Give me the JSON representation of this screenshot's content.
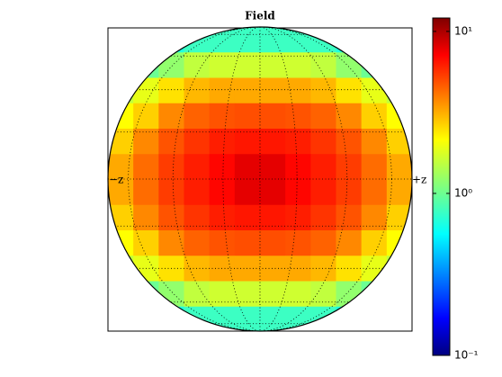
{
  "chart_data": {
    "type": "heatmap",
    "title": "Field",
    "annotations": [
      "−z",
      "+z"
    ],
    "grid": true,
    "colormap": "jet",
    "colorbar": {
      "scale": "log",
      "ylim": [
        0.1,
        12.1
      ],
      "yticks": [
        {
          "value": 0.1,
          "label": "10⁻¹"
        },
        {
          "value": 1,
          "label": "10⁰"
        },
        {
          "value": 10,
          "label": "10¹"
        }
      ]
    },
    "z": [
      [
        0.6,
        0.6,
        0.7,
        0.8,
        0.8,
        0.8,
        0.8,
        0.8,
        0.8,
        0.7,
        0.6,
        0.6
      ],
      [
        1,
        1,
        1.2,
        1.5,
        1.6,
        1.6,
        1.6,
        1.6,
        1.5,
        1.2,
        1,
        1
      ],
      [
        1.5,
        1.8,
        2.3,
        2.8,
        3,
        3,
        3,
        3,
        2.8,
        2.3,
        1.8,
        1.5
      ],
      [
        2,
        2.5,
        3.5,
        4.2,
        4.5,
        4.6,
        4.6,
        4.5,
        4.2,
        3.5,
        2.5,
        2
      ],
      [
        2.5,
        3.5,
        4.5,
        5.2,
        5.8,
        6,
        6,
        5.8,
        5.2,
        4.5,
        3.5,
        2.5
      ],
      [
        3,
        4,
        5,
        5.8,
        6.5,
        7.5,
        7.5,
        6.5,
        5.8,
        5,
        4,
        3
      ],
      [
        3,
        4,
        5,
        5.8,
        6.5,
        7.5,
        7.5,
        6.5,
        5.8,
        5,
        4,
        3
      ],
      [
        2.5,
        3.5,
        4.5,
        5.2,
        5.8,
        6,
        6,
        5.8,
        5.2,
        4.5,
        3.5,
        2.5
      ],
      [
        2,
        2.5,
        3.5,
        4.2,
        4.5,
        4.6,
        4.6,
        4.5,
        4.2,
        3.5,
        2.5,
        2
      ],
      [
        1.5,
        1.8,
        2.3,
        2.8,
        3,
        3,
        3,
        3,
        2.8,
        2.3,
        1.8,
        1.5
      ],
      [
        1,
        1,
        1.2,
        1.5,
        1.6,
        1.6,
        1.6,
        1.6,
        1.5,
        1.2,
        1,
        1
      ],
      [
        0.6,
        0.6,
        0.7,
        0.8,
        0.8,
        0.8,
        0.8,
        0.8,
        0.8,
        0.7,
        0.6,
        0.6
      ]
    ]
  }
}
